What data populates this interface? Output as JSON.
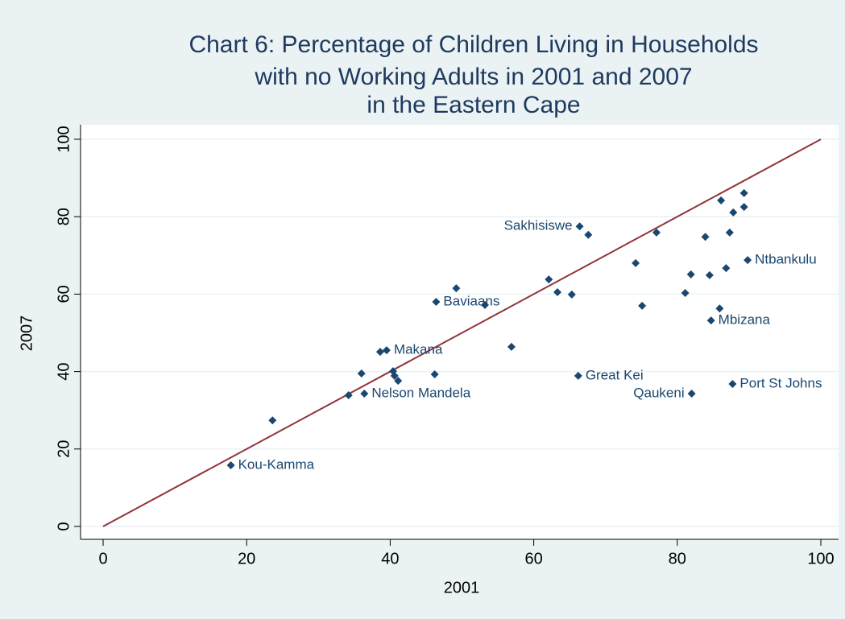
{
  "chart_data": {
    "type": "scatter",
    "title": [
      "Chart 6: Percentage of Children Living in Households",
      "with no Working Adults in 2001 and 2007",
      "in the Eastern Cape"
    ],
    "x_label": "2001",
    "y_label": "2007",
    "xlim": [
      0,
      100
    ],
    "ylim": [
      0,
      100
    ],
    "xticks": [
      0,
      20,
      40,
      60,
      80,
      100
    ],
    "yticks": [
      0,
      20,
      40,
      60,
      80,
      100
    ],
    "grid": true,
    "color": "#1a476f",
    "reference_line": {
      "x": [
        0,
        100
      ],
      "y": [
        0,
        100
      ],
      "color": "#90353b"
    },
    "x": [
      17.8,
      23.6,
      34.2,
      36.4,
      36.0,
      38.6,
      39.5,
      40.4,
      40.6,
      41.1,
      46.2,
      46.4,
      49.2,
      53.2,
      56.9,
      62.1,
      63.3,
      65.3,
      66.2,
      66.4,
      67.6,
      74.2,
      75.1,
      77.1,
      81.1,
      82.0,
      81.9,
      83.9,
      84.5,
      84.7,
      85.9,
      86.1,
      86.8,
      87.3,
      87.8,
      87.7,
      89.3,
      89.3,
      89.8
    ],
    "y": [
      15.8,
      27.4,
      33.9,
      34.3,
      39.5,
      45.1,
      45.5,
      40.1,
      38.9,
      37.6,
      39.3,
      58.0,
      61.5,
      57.2,
      46.4,
      63.8,
      60.5,
      59.9,
      38.9,
      77.5,
      75.3,
      68.0,
      57.0,
      75.9,
      60.3,
      34.3,
      65.1,
      74.8,
      64.9,
      53.2,
      56.3,
      84.2,
      66.7,
      75.9,
      81.1,
      36.8,
      86.1,
      82.5,
      68.8
    ],
    "labels": [
      "Kou-Kamma",
      null,
      null,
      "Nelson Mandela",
      null,
      null,
      "Makana",
      null,
      null,
      null,
      null,
      "Baviaans",
      null,
      null,
      null,
      null,
      null,
      null,
      "Great Kei",
      "Sakhisiswe",
      null,
      null,
      null,
      null,
      null,
      "Qaukeni",
      null,
      null,
      null,
      "Mbizana",
      null,
      null,
      null,
      null,
      null,
      "Port St Johns",
      null,
      null,
      "Ntbankulu"
    ]
  }
}
